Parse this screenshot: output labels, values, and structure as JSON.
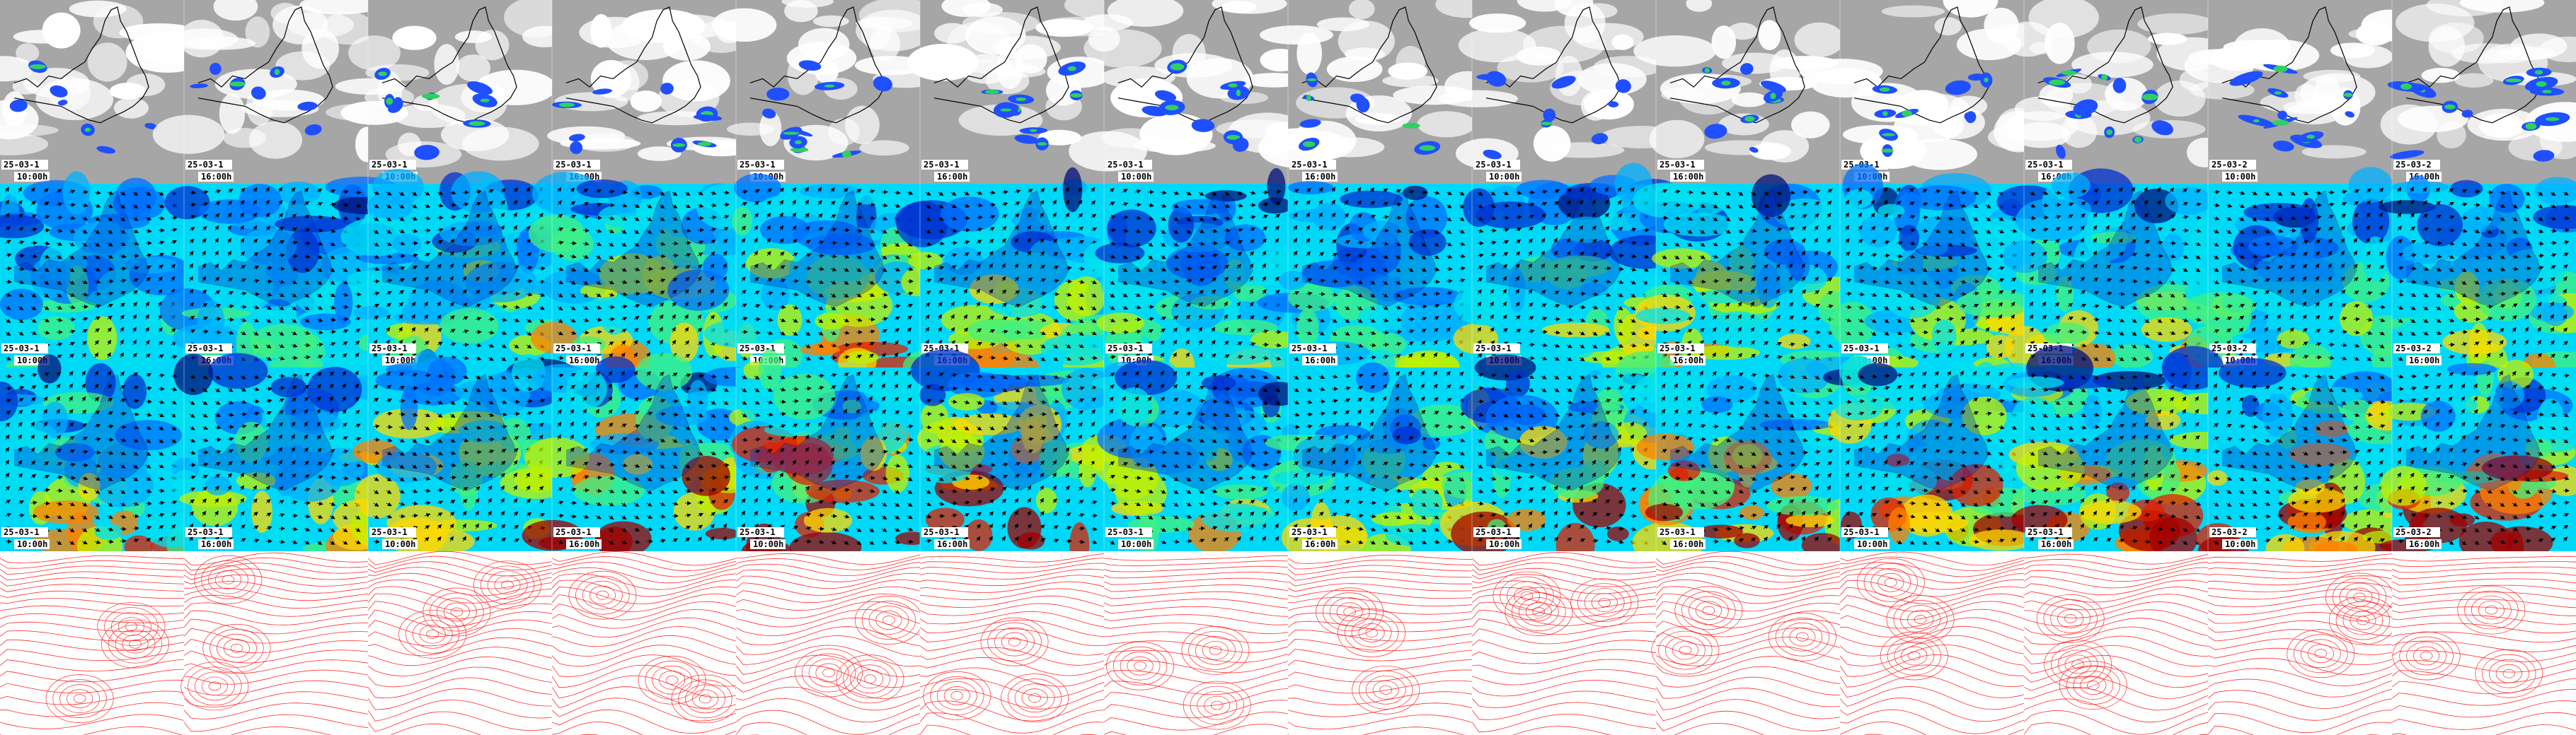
{
  "grid": {
    "columns": 14,
    "rows": [
      {
        "id": "cloud",
        "name": "cloud-precip-row"
      },
      {
        "id": "wind1",
        "name": "wind-speed-row-1"
      },
      {
        "id": "wind2",
        "name": "wind-speed-row-2"
      },
      {
        "id": "pressure",
        "name": "pressure-contour-row"
      }
    ]
  },
  "tiles": [
    {
      "date": "25-03-1",
      "time": "10:00h"
    },
    {
      "date": "25-03-1",
      "time": "16:00h"
    },
    {
      "date": "25-03-1",
      "time": "10:00h"
    },
    {
      "date": "25-03-1",
      "time": "16:00h"
    },
    {
      "date": "25-03-1",
      "time": "10:00h"
    },
    {
      "date": "25-03-1",
      "time": "16:00h"
    },
    {
      "date": "25-03-1",
      "time": "10:00h"
    },
    {
      "date": "25-03-1",
      "time": "16:00h"
    },
    {
      "date": "25-03-1",
      "time": "10:00h"
    },
    {
      "date": "25-03-1",
      "time": "16:00h"
    },
    {
      "date": "25-03-1",
      "time": "10:00h"
    },
    {
      "date": "25-03-1",
      "time": "16:00h"
    },
    {
      "date": "25-03-2",
      "time": "10:00h"
    },
    {
      "date": "25-03-2",
      "time": "16:00h"
    }
  ],
  "intensity": {
    "cloud": [
      0.3,
      0.35,
      0.5,
      0.55,
      0.6,
      0.55,
      0.5,
      0.45,
      0.5,
      0.55,
      0.65,
      0.7,
      0.75,
      0.8
    ],
    "wind1": [
      0.45,
      0.4,
      0.55,
      0.6,
      0.65,
      0.6,
      0.5,
      0.45,
      0.55,
      0.6,
      0.55,
      0.6,
      0.5,
      0.55
    ],
    "wind2": [
      0.6,
      0.55,
      0.75,
      0.85,
      0.9,
      0.85,
      0.6,
      0.55,
      0.75,
      0.8,
      0.85,
      0.8,
      0.85,
      0.9
    ]
  },
  "colors": {
    "cloud_white": "#ffffff",
    "cloud_grey": "#a6a6a6",
    "precip_blue": "#1f4fff",
    "precip_green": "#2fd060",
    "wind_scale": [
      "#00107a",
      "#0030d0",
      "#0070ff",
      "#00b0ff",
      "#00e0f0",
      "#40f080",
      "#c0f000",
      "#ffd800",
      "#ff8000",
      "#e02000",
      "#a00000"
    ],
    "contour": "#ff2a2a",
    "coast": "#000000",
    "label_bg": "#ffffff",
    "label_text": "#000000"
  },
  "icons": {
    "wind_arrow": "wind-arrow-icon",
    "coastline": "coastline-icon"
  }
}
